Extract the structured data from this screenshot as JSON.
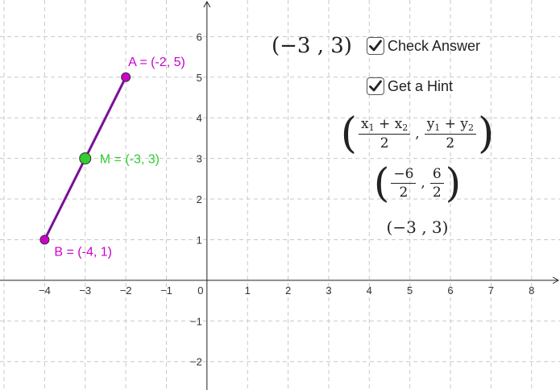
{
  "graph": {
    "x_ticks": [
      "−4",
      "−3",
      "−2",
      "−1",
      "0",
      "1",
      "2",
      "3",
      "4",
      "5",
      "6",
      "7",
      "8"
    ],
    "y_ticks": [
      "6",
      "5",
      "4",
      "3",
      "2",
      "1",
      "−1",
      "−2"
    ],
    "x_range": [
      -5.1,
      8.7
    ],
    "y_range": [
      -2.7,
      6.9
    ],
    "grid": true,
    "segment_color": "#7b0f99",
    "points": [
      {
        "id": "A",
        "label": "A = (-2, 5)",
        "x": -2,
        "y": 5,
        "color": "#cc00cc",
        "label_color": "#cc00cc"
      },
      {
        "id": "M",
        "label": "M = (-3, 3)",
        "x": -3,
        "y": 3,
        "color": "#33cc33",
        "label_color": "#33cc33"
      },
      {
        "id": "B",
        "label": "B = (-4, 1)",
        "x": -4,
        "y": 1,
        "color": "#cc00cc",
        "label_color": "#cc00cc"
      }
    ]
  },
  "answer_display": "(−3 , 3)",
  "checkboxes": {
    "check_answer": {
      "label": "Check Answer",
      "checked": true
    },
    "get_hint": {
      "label": "Get a Hint",
      "checked": true
    }
  },
  "hint": {
    "formula": {
      "x1": "x",
      "x2": "x",
      "y1": "y",
      "y2": "y",
      "sub1": "1",
      "sub2": "2",
      "plus": "+",
      "den": "2",
      "comma": ","
    },
    "substituted": {
      "num_x": "−6",
      "num_y": "6",
      "den": "2",
      "comma": ","
    },
    "result": "(−3 , 3)"
  }
}
